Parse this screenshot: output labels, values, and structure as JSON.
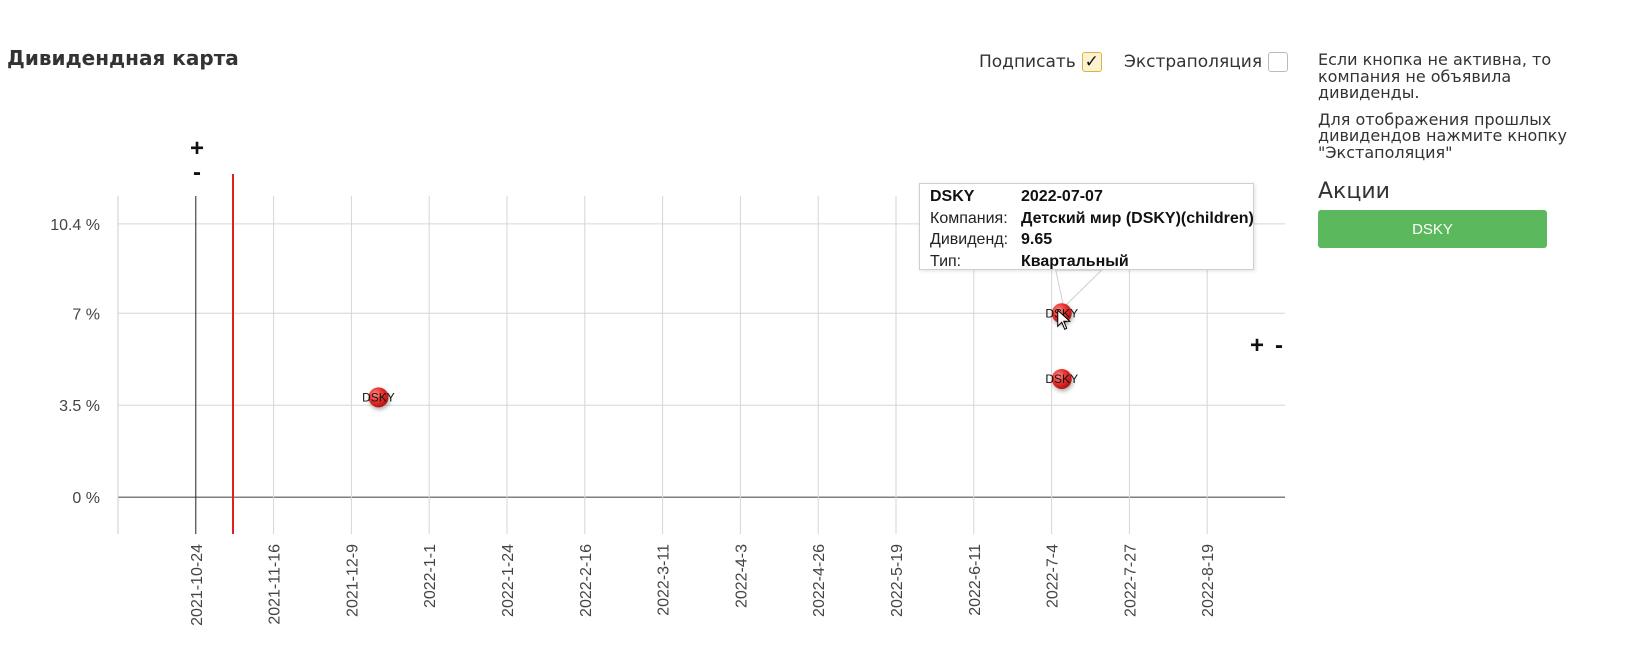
{
  "header": {
    "title": "Дивидендная карта",
    "sign_label": "Подписать",
    "sign_checked": true,
    "extrapolation_label": "Экстраполяция",
    "extrapolation_checked": false
  },
  "sidebar": {
    "note1": "Если кнопка не активна, то компания не объявила дивиденды.",
    "note2": "Для отображения прошлых дивидендов нажмите кнопку \"Экстаполяция\"",
    "stocks_heading": "Акции",
    "stocks": [
      "DSKY"
    ]
  },
  "zoom_controls": {
    "y_plus": "+",
    "y_minus": "-",
    "x_plus": "+",
    "x_minus": "-"
  },
  "tooltip": {
    "ticker": "DSKY",
    "date": "2022-07-07",
    "company_label": "Компания:",
    "company": "Детский мир (DSKY)(children)(!",
    "dividend_label": "Дивиденд:",
    "dividend": "9.65",
    "type_label": "Тип:",
    "type": "Квартальный"
  },
  "colors": {
    "point": "#e8322f",
    "today_line": "#e0201c",
    "button": "#5cb85c"
  },
  "chart_data": {
    "type": "scatter",
    "title": "",
    "xlabel": "",
    "ylabel": "",
    "x_ticks": [
      "2021-10-24",
      "2021-11-16",
      "2021-12-9",
      "2022-1-1",
      "2022-1-24",
      "2022-2-16",
      "2022-3-11",
      "2022-4-3",
      "2022-4-26",
      "2022-5-19",
      "2022-6-11",
      "2022-7-4",
      "2022-7-27",
      "2022-8-19"
    ],
    "xlim": [
      "2021-10-01",
      "2022-09-11"
    ],
    "today": "2021-11-04",
    "y_ticks": [
      {
        "value": 0,
        "label": "0 %"
      },
      {
        "value": 3.5,
        "label": "3.5 %"
      },
      {
        "value": 7,
        "label": "7 %"
      },
      {
        "value": 10.4,
        "label": "10.4 %"
      }
    ],
    "ylim": [
      -1.4,
      12.3
    ],
    "grid": true,
    "series": [
      {
        "points": [
          {
            "x": "2021-12-17",
            "y": 3.8,
            "label": "DSKY"
          },
          {
            "x": "2022-07-07",
            "y": 7.0,
            "label": "DSKY"
          },
          {
            "x": "2022-07-07",
            "y": 4.5,
            "label": "DSKY"
          }
        ]
      }
    ]
  }
}
